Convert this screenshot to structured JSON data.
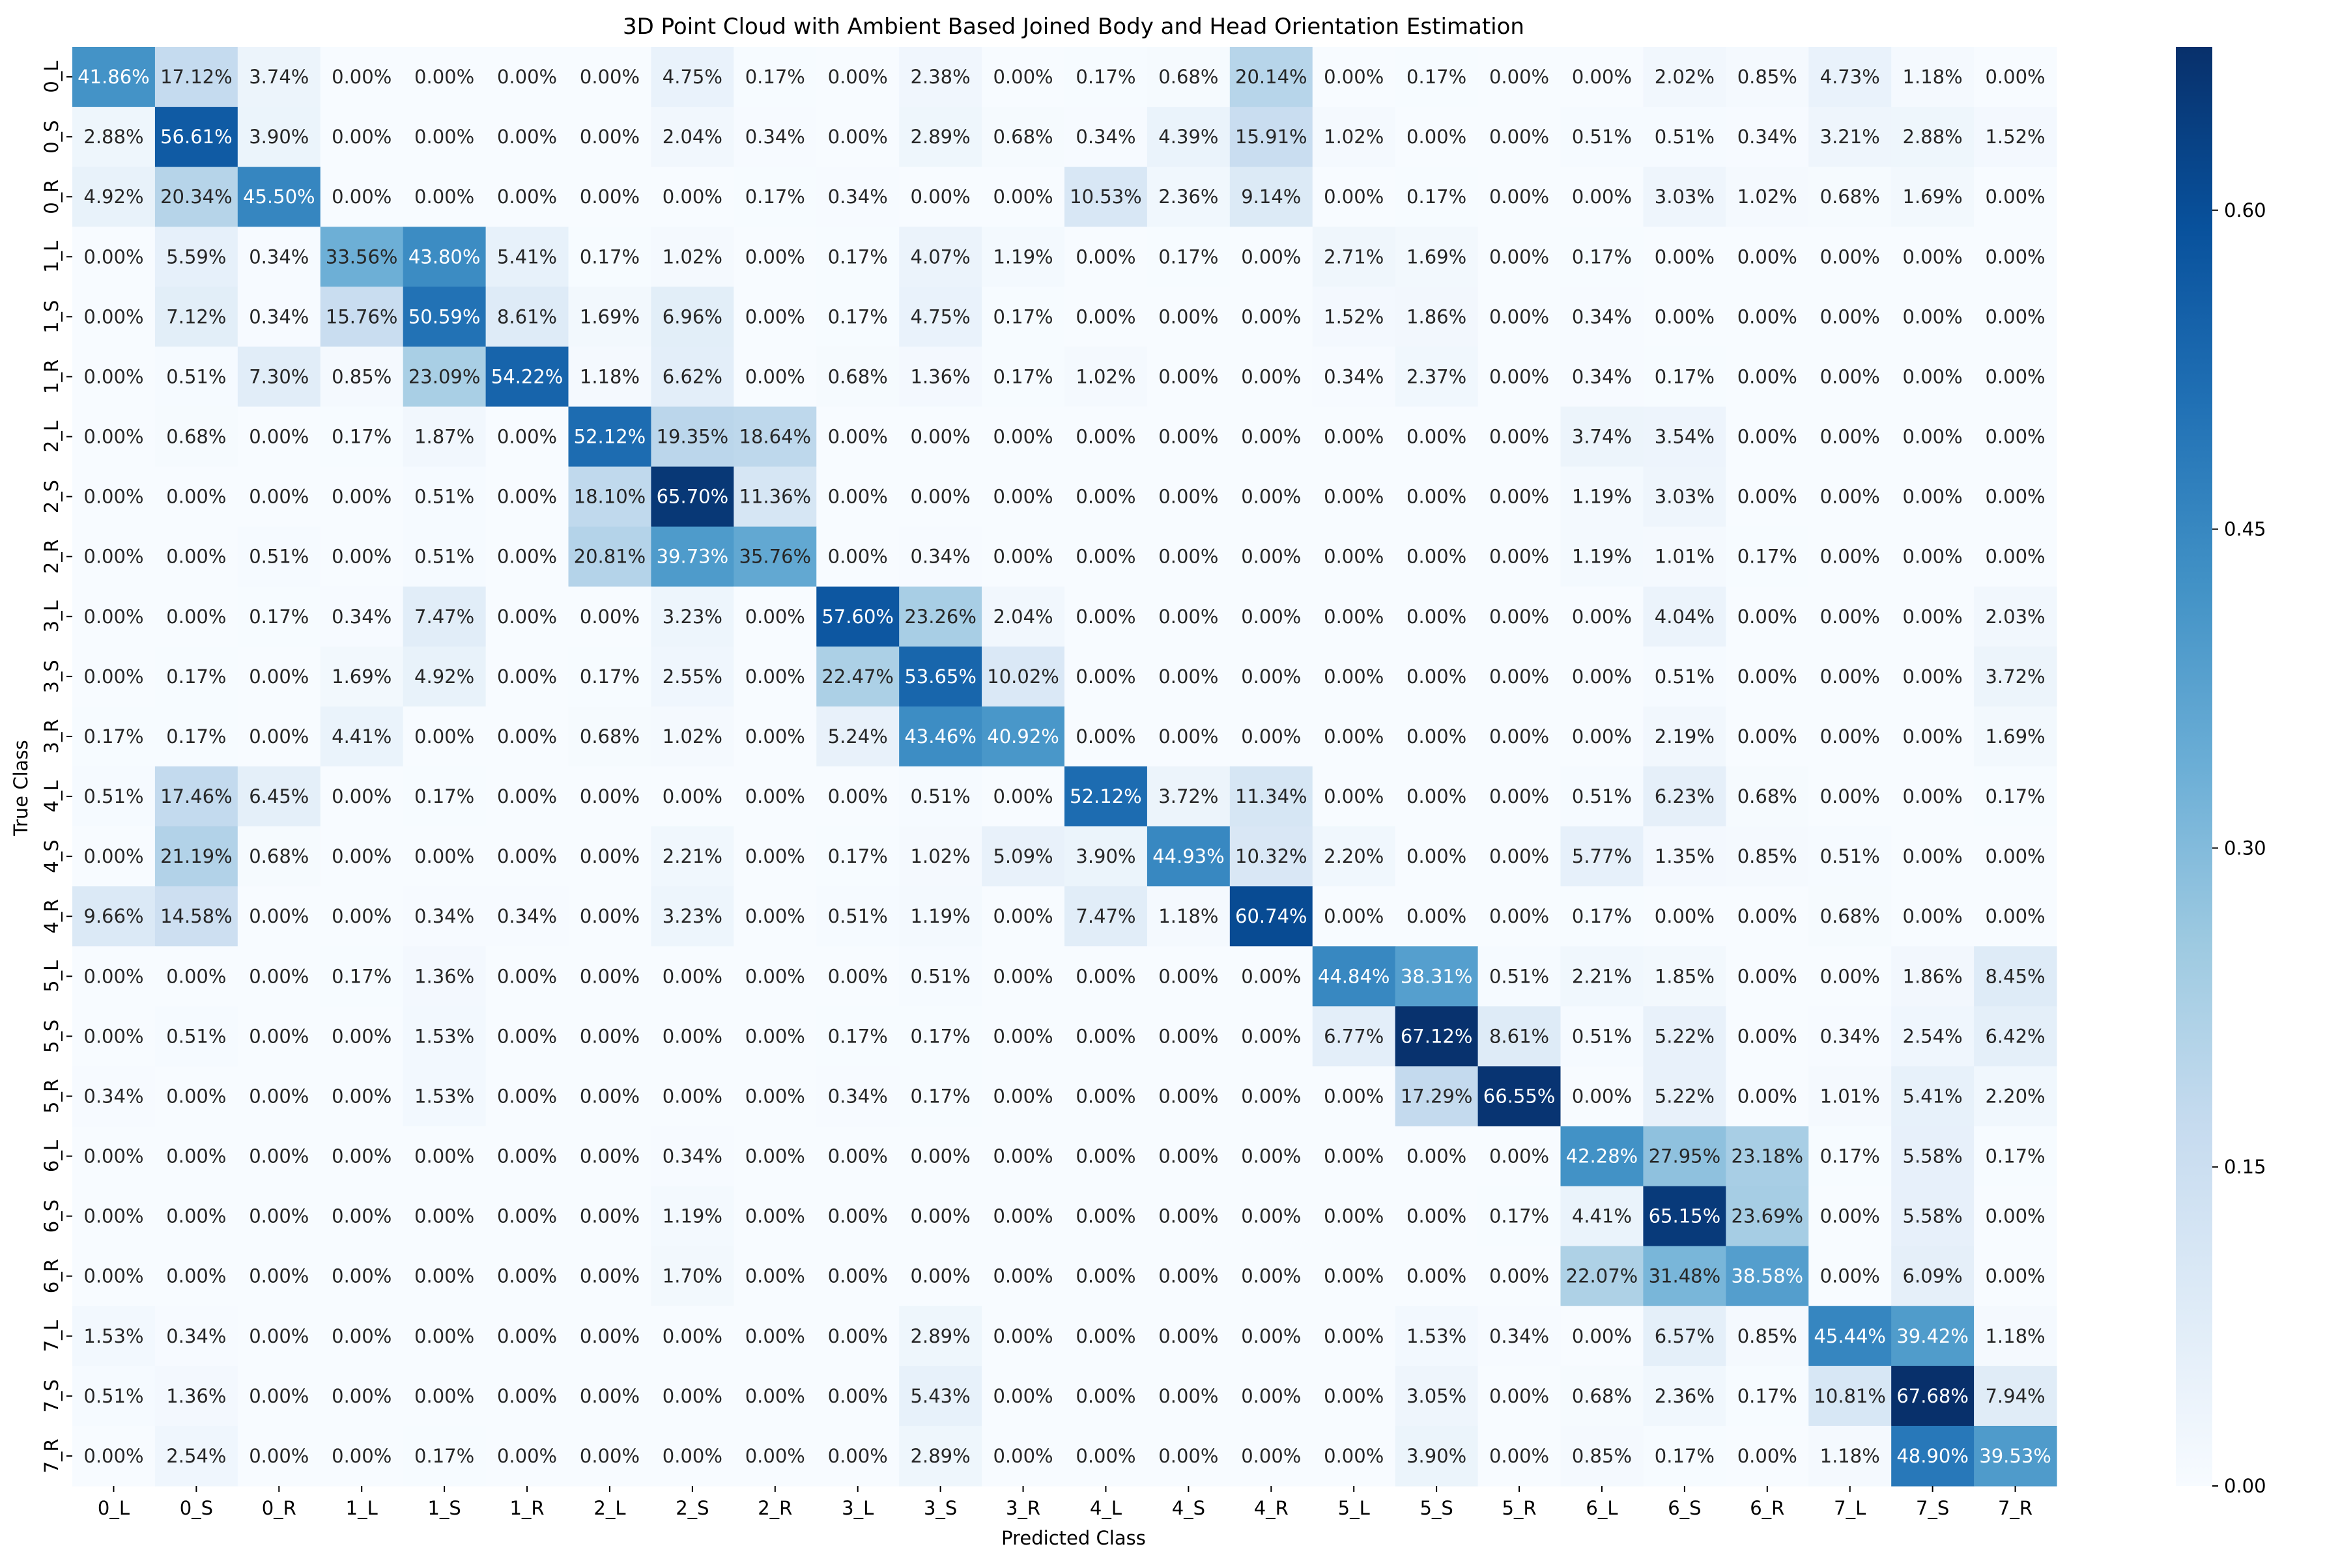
{
  "chart_data": {
    "type": "heatmap",
    "title": "3D Point Cloud with Ambient Based Joined Body and Head Orientation Estimation",
    "xlabel": "Predicted Class",
    "ylabel": "True Class",
    "x_categories": [
      "0_L",
      "0_S",
      "0_R",
      "1_L",
      "1_S",
      "1_R",
      "2_L",
      "2_S",
      "2_R",
      "3_L",
      "3_S",
      "3_R",
      "4_L",
      "4_S",
      "4_R",
      "5_L",
      "5_S",
      "5_R",
      "6_L",
      "6_S",
      "6_R",
      "7_L",
      "7_S",
      "7_R"
    ],
    "y_categories": [
      "0_L",
      "0_S",
      "0_R",
      "1_L",
      "1_S",
      "1_R",
      "2_L",
      "2_S",
      "2_R",
      "3_L",
      "3_S",
      "3_R",
      "4_L",
      "4_S",
      "4_R",
      "5_L",
      "5_S",
      "5_R",
      "6_L",
      "6_S",
      "6_R",
      "7_L",
      "7_S",
      "7_R"
    ],
    "values": [
      [
        41.86,
        17.12,
        3.74,
        0.0,
        0.0,
        0.0,
        0.0,
        4.75,
        0.17,
        0.0,
        2.38,
        0.0,
        0.17,
        0.68,
        20.14,
        0.0,
        0.17,
        0.0,
        0.0,
        2.02,
        0.85,
        4.73,
        1.18,
        0.0
      ],
      [
        2.88,
        56.61,
        3.9,
        0.0,
        0.0,
        0.0,
        0.0,
        2.04,
        0.34,
        0.0,
        2.89,
        0.68,
        0.34,
        4.39,
        15.91,
        1.02,
        0.0,
        0.0,
        0.51,
        0.51,
        0.34,
        3.21,
        2.88,
        1.52
      ],
      [
        4.92,
        20.34,
        45.5,
        0.0,
        0.0,
        0.0,
        0.0,
        0.0,
        0.17,
        0.34,
        0.0,
        0.0,
        10.53,
        2.36,
        9.14,
        0.0,
        0.17,
        0.0,
        0.0,
        3.03,
        1.02,
        0.68,
        1.69,
        0.0
      ],
      [
        0.0,
        5.59,
        0.34,
        33.56,
        43.8,
        5.41,
        0.17,
        1.02,
        0.0,
        0.17,
        4.07,
        1.19,
        0.0,
        0.17,
        0.0,
        2.71,
        1.69,
        0.0,
        0.17,
        0.0,
        0.0,
        0.0,
        0.0,
        0.0
      ],
      [
        0.0,
        7.12,
        0.34,
        15.76,
        50.59,
        8.61,
        1.69,
        6.96,
        0.0,
        0.17,
        4.75,
        0.17,
        0.0,
        0.0,
        0.0,
        1.52,
        1.86,
        0.0,
        0.34,
        0.0,
        0.0,
        0.0,
        0.0,
        0.0
      ],
      [
        0.0,
        0.51,
        7.3,
        0.85,
        23.09,
        54.22,
        1.18,
        6.62,
        0.0,
        0.68,
        1.36,
        0.17,
        1.02,
        0.0,
        0.0,
        0.34,
        2.37,
        0.0,
        0.34,
        0.17,
        0.0,
        0.0,
        0.0,
        0.0
      ],
      [
        0.0,
        0.68,
        0.0,
        0.17,
        1.87,
        0.0,
        52.12,
        19.35,
        18.64,
        0.0,
        0.0,
        0.0,
        0.0,
        0.0,
        0.0,
        0.0,
        0.0,
        0.0,
        3.74,
        3.54,
        0.0,
        0.0,
        0.0,
        0.0
      ],
      [
        0.0,
        0.0,
        0.0,
        0.0,
        0.51,
        0.0,
        18.1,
        65.7,
        11.36,
        0.0,
        0.0,
        0.0,
        0.0,
        0.0,
        0.0,
        0.0,
        0.0,
        0.0,
        1.19,
        3.03,
        0.0,
        0.0,
        0.0,
        0.0
      ],
      [
        0.0,
        0.0,
        0.51,
        0.0,
        0.51,
        0.0,
        20.81,
        39.73,
        35.76,
        0.0,
        0.34,
        0.0,
        0.0,
        0.0,
        0.0,
        0.0,
        0.0,
        0.0,
        1.19,
        1.01,
        0.17,
        0.0,
        0.0,
        0.0
      ],
      [
        0.0,
        0.0,
        0.17,
        0.34,
        7.47,
        0.0,
        0.0,
        3.23,
        0.0,
        57.6,
        23.26,
        2.04,
        0.0,
        0.0,
        0.0,
        0.0,
        0.0,
        0.0,
        0.0,
        4.04,
        0.0,
        0.0,
        0.0,
        2.03
      ],
      [
        0.0,
        0.17,
        0.0,
        1.69,
        4.92,
        0.0,
        0.17,
        2.55,
        0.0,
        22.47,
        53.65,
        10.02,
        0.0,
        0.0,
        0.0,
        0.0,
        0.0,
        0.0,
        0.0,
        0.51,
        0.0,
        0.0,
        0.0,
        3.72
      ],
      [
        0.17,
        0.17,
        0.0,
        4.41,
        0.0,
        0.0,
        0.68,
        1.02,
        0.0,
        5.24,
        43.46,
        40.92,
        0.0,
        0.0,
        0.0,
        0.0,
        0.0,
        0.0,
        0.0,
        2.19,
        0.0,
        0.0,
        0.0,
        1.69
      ],
      [
        0.51,
        17.46,
        6.45,
        0.0,
        0.17,
        0.0,
        0.0,
        0.0,
        0.0,
        0.0,
        0.51,
        0.0,
        52.12,
        3.72,
        11.34,
        0.0,
        0.0,
        0.0,
        0.51,
        6.23,
        0.68,
        0.0,
        0.0,
        0.17
      ],
      [
        0.0,
        21.19,
        0.68,
        0.0,
        0.0,
        0.0,
        0.0,
        2.21,
        0.0,
        0.17,
        1.02,
        5.09,
        3.9,
        44.93,
        10.32,
        2.2,
        0.0,
        0.0,
        5.77,
        1.35,
        0.85,
        0.51,
        0.0,
        0.0
      ],
      [
        9.66,
        14.58,
        0.0,
        0.0,
        0.34,
        0.34,
        0.0,
        3.23,
        0.0,
        0.51,
        1.19,
        0.0,
        7.47,
        1.18,
        60.74,
        0.0,
        0.0,
        0.0,
        0.17,
        0.0,
        0.0,
        0.68,
        0.0,
        0.0
      ],
      [
        0.0,
        0.0,
        0.0,
        0.17,
        1.36,
        0.0,
        0.0,
        0.0,
        0.0,
        0.0,
        0.51,
        0.0,
        0.0,
        0.0,
        0.0,
        44.84,
        38.31,
        0.51,
        2.21,
        1.85,
        0.0,
        0.0,
        1.86,
        8.45
      ],
      [
        0.0,
        0.51,
        0.0,
        0.0,
        1.53,
        0.0,
        0.0,
        0.0,
        0.0,
        0.17,
        0.17,
        0.0,
        0.0,
        0.0,
        0.0,
        6.77,
        67.12,
        8.61,
        0.51,
        5.22,
        0.0,
        0.34,
        2.54,
        6.42
      ],
      [
        0.34,
        0.0,
        0.0,
        0.0,
        1.53,
        0.0,
        0.0,
        0.0,
        0.0,
        0.34,
        0.17,
        0.0,
        0.0,
        0.0,
        0.0,
        0.0,
        17.29,
        66.55,
        0.0,
        5.22,
        0.0,
        1.01,
        5.41,
        2.2
      ],
      [
        0.0,
        0.0,
        0.0,
        0.0,
        0.0,
        0.0,
        0.0,
        0.34,
        0.0,
        0.0,
        0.0,
        0.0,
        0.0,
        0.0,
        0.0,
        0.0,
        0.0,
        0.0,
        42.28,
        27.95,
        23.18,
        0.17,
        5.58,
        0.17
      ],
      [
        0.0,
        0.0,
        0.0,
        0.0,
        0.0,
        0.0,
        0.0,
        1.19,
        0.0,
        0.0,
        0.0,
        0.0,
        0.0,
        0.0,
        0.0,
        0.0,
        0.0,
        0.17,
        4.41,
        65.15,
        23.69,
        0.0,
        5.58,
        0.0
      ],
      [
        0.0,
        0.0,
        0.0,
        0.0,
        0.0,
        0.0,
        0.0,
        1.7,
        0.0,
        0.0,
        0.0,
        0.0,
        0.0,
        0.0,
        0.0,
        0.0,
        0.0,
        0.0,
        22.07,
        31.48,
        38.58,
        0.0,
        6.09,
        0.0
      ],
      [
        1.53,
        0.34,
        0.0,
        0.0,
        0.0,
        0.0,
        0.0,
        0.0,
        0.0,
        0.0,
        2.89,
        0.0,
        0.0,
        0.0,
        0.0,
        0.0,
        1.53,
        0.34,
        0.0,
        6.57,
        0.85,
        45.44,
        39.42,
        1.18
      ],
      [
        0.51,
        1.36,
        0.0,
        0.0,
        0.0,
        0.0,
        0.0,
        0.0,
        0.0,
        0.0,
        5.43,
        0.0,
        0.0,
        0.0,
        0.0,
        0.0,
        3.05,
        0.0,
        0.68,
        2.36,
        0.17,
        10.81,
        67.68,
        7.94
      ],
      [
        0.0,
        2.54,
        0.0,
        0.0,
        0.17,
        0.0,
        0.0,
        0.0,
        0.0,
        0.0,
        2.89,
        0.0,
        0.0,
        0.0,
        0.0,
        0.0,
        3.9,
        0.0,
        0.85,
        0.17,
        0.0,
        1.18,
        48.9,
        39.53
      ]
    ],
    "value_format": "percent_2dp",
    "colormap": "Blues",
    "color_range": [
      0.0,
      0.6768
    ],
    "colorbar_ticks": [
      0.0,
      0.15,
      0.3,
      0.45,
      0.6
    ],
    "colorbar_tick_labels": [
      "0.00",
      "0.15",
      "0.30",
      "0.45",
      "0.60"
    ],
    "colorbar_side": "right",
    "grid": false
  }
}
